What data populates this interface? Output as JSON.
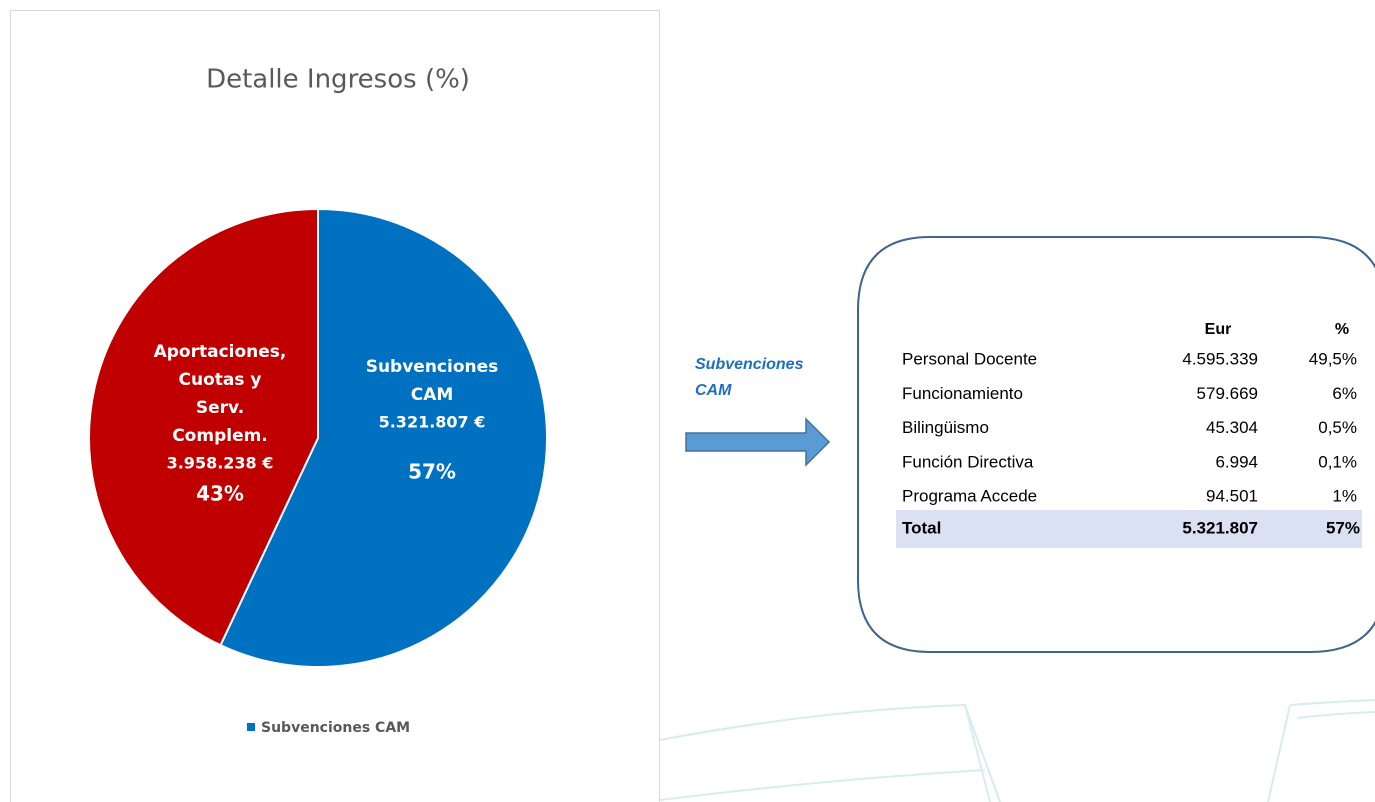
{
  "chart_data": {
    "type": "pie",
    "title": "Detalle Ingresos (%)",
    "categories": [
      "Subvenciones CAM",
      "Aportaciones, Cuotas y Serv. Complem."
    ],
    "values": [
      57,
      43
    ],
    "value_labels": [
      "57%",
      "43%"
    ],
    "amount_labels": [
      "5.321.807 €",
      "3.958.238 €"
    ],
    "colors": [
      "#0070c0",
      "#c00000"
    ]
  },
  "arrow_label": "Subvenciones CAM",
  "table": {
    "header": [
      "Eur",
      "%"
    ],
    "rows": [
      [
        "Personal Docente",
        "4.595.339",
        "49,5%"
      ],
      [
        "Funcionamiento",
        "579.669",
        "6%"
      ],
      [
        "Bilingüismo",
        "45.304",
        "0,5%"
      ],
      [
        "Función Directiva",
        "6.994",
        "0,1%"
      ],
      [
        "Programa Accede",
        "94.501",
        "1%"
      ]
    ],
    "total": [
      "Total",
      "5.321.807",
      "57%"
    ]
  }
}
